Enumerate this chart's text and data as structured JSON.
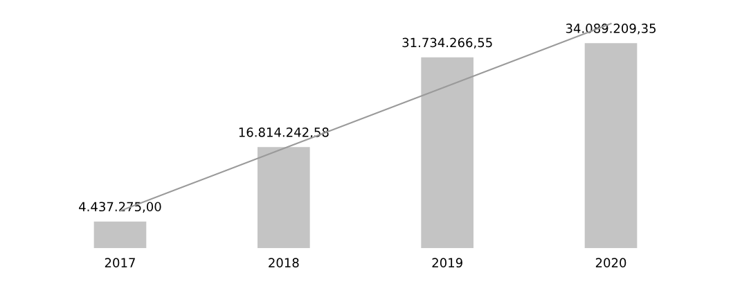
{
  "chart_data": {
    "type": "bar",
    "categories": [
      "2017",
      "2018",
      "2019",
      "2020"
    ],
    "series": [
      {
        "color": "#c4c4c4",
        "values": [
          4437275.0,
          16814242.58,
          31734266.55,
          34089209.35
        ],
        "value_labels": [
          "4.437.275,00",
          "16.814.242,58",
          "31.734.266,55",
          "34.089.209,35"
        ]
      },
      {
        "type": "line",
        "color": "#9a9a9a",
        "values": [
          6190000,
          16580000,
          26960000,
          37350000
        ]
      }
    ]
  }
}
